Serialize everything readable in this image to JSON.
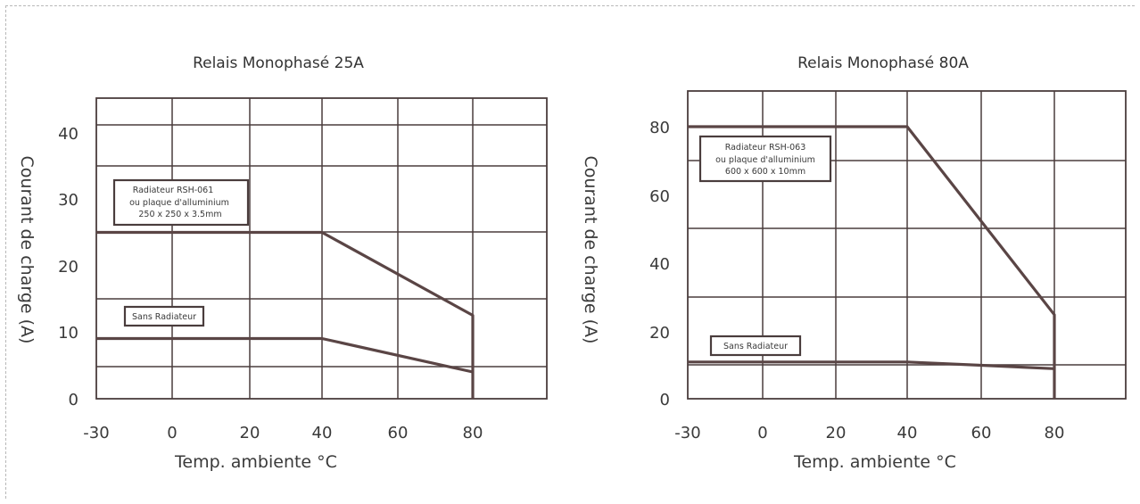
{
  "chart_data": [
    {
      "type": "line",
      "title": "Relais Monophasé 25A",
      "xlabel": "Temp. ambiente °C",
      "ylabel": "Courant de charge (A)",
      "x_ticks": [
        "-30",
        "0",
        "20",
        "40",
        "60",
        "80"
      ],
      "y_ticks": [
        "0",
        "10",
        "20",
        "30",
        "40"
      ],
      "xlim": [
        -30,
        100
      ],
      "ylim": [
        0,
        45
      ],
      "grid": true,
      "series": [
        {
          "x": [
            -30,
            40,
            80,
            80
          ],
          "y": [
            25,
            25,
            12.5,
            0
          ]
        },
        {
          "x": [
            -30,
            40,
            80
          ],
          "y": [
            9,
            9,
            4
          ]
        }
      ],
      "annotations": [
        {
          "lines": [
            "Radiateur RSH-061",
            "ou plaque d'alluminium",
            "250 x 250 x 3.5mm"
          ]
        },
        {
          "lines": [
            "Sans Radiateur"
          ]
        }
      ]
    },
    {
      "type": "line",
      "title": "Relais Monophasé 80A",
      "xlabel": "Temp. ambiente °C",
      "ylabel": "",
      "x_ticks": [
        "-30",
        "0",
        "20",
        "40",
        "60",
        "80"
      ],
      "y_ticks": [
        "0",
        "20",
        "40",
        "60",
        "80"
      ],
      "xlim": [
        -30,
        100
      ],
      "ylim": [
        0,
        90
      ],
      "grid": true,
      "series": [
        {
          "x": [
            -30,
            40,
            80,
            80
          ],
          "y": [
            80,
            80,
            25,
            0
          ]
        },
        {
          "x": [
            -30,
            40,
            60,
            80
          ],
          "y": [
            11,
            11,
            10,
            9
          ]
        }
      ],
      "annotations": [
        {
          "lines": [
            "Radiateur RSH-063",
            "ou plaque d'alluminium",
            "600 x 600 x 10mm"
          ]
        },
        {
          "lines": [
            "Sans Radiateur"
          ]
        }
      ]
    }
  ]
}
